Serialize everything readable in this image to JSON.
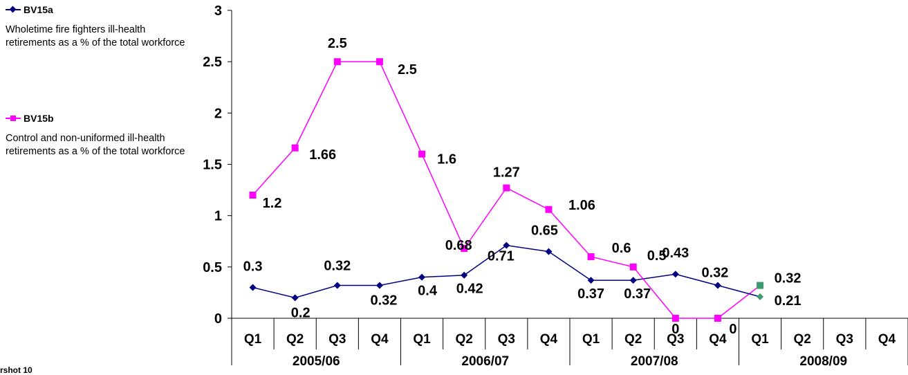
{
  "chart_data": {
    "type": "line",
    "title": "",
    "xlabel": "",
    "ylabel": "",
    "ylim": [
      0,
      3
    ],
    "yticks": [
      "0",
      "0.5",
      "1",
      "1.5",
      "2",
      "2.5",
      "3"
    ],
    "quarters": [
      "Q1",
      "Q2",
      "Q3",
      "Q4",
      "Q1",
      "Q2",
      "Q3",
      "Q4",
      "Q1",
      "Q2",
      "Q3",
      "Q4",
      "Q1",
      "Q2",
      "Q3",
      "Q4"
    ],
    "years": [
      "2005/06",
      "2006/07",
      "2007/08",
      "2008/09"
    ],
    "grid": false,
    "legend_position": "left",
    "series": [
      {
        "name": "BV15a",
        "description": "Wholetime fire fighters ill-health retirements as a % of the total workforce",
        "color": "#000080",
        "marker": "diamond",
        "values": [
          0.3,
          0.2,
          0.32,
          0.32,
          0.4,
          0.42,
          0.71,
          0.65,
          0.37,
          0.37,
          0.43,
          0.32
        ],
        "labels": [
          "0.3",
          "0.2",
          "0.32",
          "0.32",
          "0.4",
          "0.42",
          "0.71",
          "0.65",
          "0.37",
          "0.37",
          "0.43",
          "0.32"
        ]
      },
      {
        "name": "BV15b",
        "description": "Control and non-uniformed ill-health retirements as a % of the total workforce",
        "color": "#FF00FF",
        "marker": "square",
        "values": [
          1.2,
          1.66,
          2.5,
          2.5,
          1.6,
          0.68,
          1.27,
          1.06,
          0.6,
          0.5,
          0,
          0
        ],
        "labels": [
          "1.2",
          "1.66",
          "2.5",
          "2.5",
          "1.6",
          "0.68",
          "1.27",
          "1.06",
          "0.6",
          "0.5",
          "0",
          "0"
        ]
      }
    ],
    "highlight_points": [
      {
        "quarter_index": 12,
        "value": 0.32,
        "label": "0.32",
        "color": "#3C9A6E",
        "marker": "square"
      },
      {
        "quarter_index": 12,
        "value": 0.21,
        "label": "0.21",
        "color": "#3C9A6E",
        "marker": "diamond"
      }
    ]
  },
  "legend": {
    "entries": [
      {
        "name": "BV15a",
        "description": "Wholetime fire fighters ill-health retirements as a % of the total workforce"
      },
      {
        "name": "BV15b",
        "description": "Control and non-uniformed ill-health retirements as a % of the total workforce"
      }
    ]
  },
  "footnote": "rshot 10"
}
